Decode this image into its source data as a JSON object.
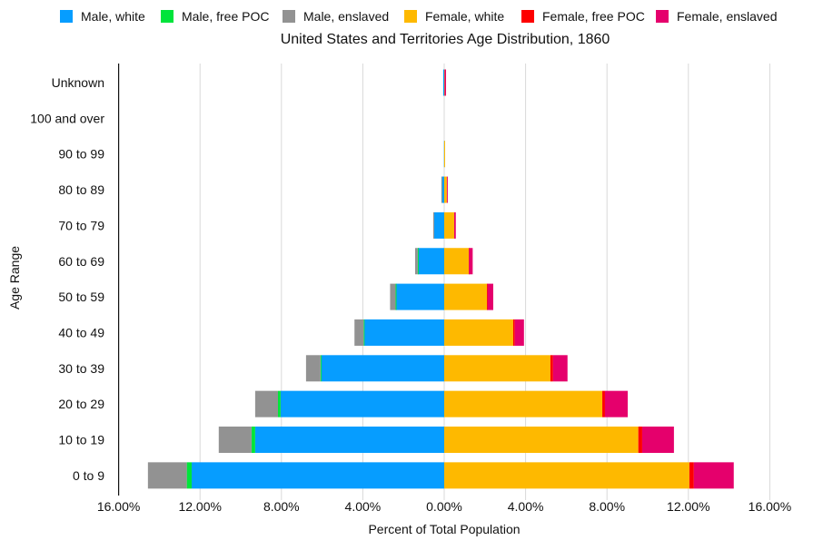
{
  "chart_data": {
    "type": "bar",
    "orientation": "horizontal",
    "stacked": true,
    "diverging": true,
    "title": "United States and Territories Age Distribution, 1860",
    "xlabel": "Percent of Total Population",
    "ylabel": "Age Range",
    "xlim": [
      -16,
      16
    ],
    "xticks": [
      -16,
      -12,
      -8,
      -4,
      0,
      4,
      8,
      12,
      16
    ],
    "xtick_labels": [
      "16.00%",
      "12.00%",
      "8.00%",
      "4.00%",
      "0.00%",
      "4.00%",
      "8.00%",
      "12.00%",
      "16.00%"
    ],
    "grid": true,
    "legend_position": "top",
    "categories": [
      "Unknown",
      "100 and over",
      "90 to 99",
      "80 to 89",
      "70 to 79",
      "60 to 69",
      "50 to 59",
      "40 to 49",
      "30 to 39",
      "20 to 29",
      "10 to 19",
      "0 to 9"
    ],
    "series": [
      {
        "name": "Male, white",
        "side": "left",
        "color": "#069dff",
        "values": [
          0.05,
          0.0,
          0.01,
          0.13,
          0.49,
          1.29,
          2.37,
          3.93,
          6.03,
          8.04,
          9.29,
          12.41
        ]
      },
      {
        "name": "Male, free POC",
        "side": "left",
        "color": "#00e43b",
        "values": [
          0.0,
          0.0,
          0.0,
          0.0,
          0.0,
          0.01,
          0.02,
          0.03,
          0.05,
          0.13,
          0.18,
          0.24
        ]
      },
      {
        "name": "Male, enslaved",
        "side": "left",
        "color": "#929292",
        "values": [
          0.0,
          0.0,
          0.0,
          0.01,
          0.05,
          0.13,
          0.27,
          0.45,
          0.71,
          1.12,
          1.61,
          1.91
        ]
      },
      {
        "name": "Female, white",
        "side": "right",
        "color": "#feb900",
        "values": [
          0.02,
          0.0,
          0.01,
          0.13,
          0.49,
          1.21,
          2.1,
          3.39,
          5.22,
          7.77,
          9.54,
          12.05
        ]
      },
      {
        "name": "Female, free POC",
        "side": "right",
        "color": "#fd0000",
        "values": [
          0.0,
          0.0,
          0.0,
          0.0,
          0.0,
          0.01,
          0.03,
          0.08,
          0.13,
          0.13,
          0.19,
          0.22
        ]
      },
      {
        "name": "Female, enslaved",
        "side": "right",
        "color": "#e5006c",
        "values": [
          0.07,
          0.0,
          0.0,
          0.01,
          0.08,
          0.18,
          0.28,
          0.45,
          0.71,
          1.12,
          1.56,
          1.96
        ]
      }
    ]
  }
}
